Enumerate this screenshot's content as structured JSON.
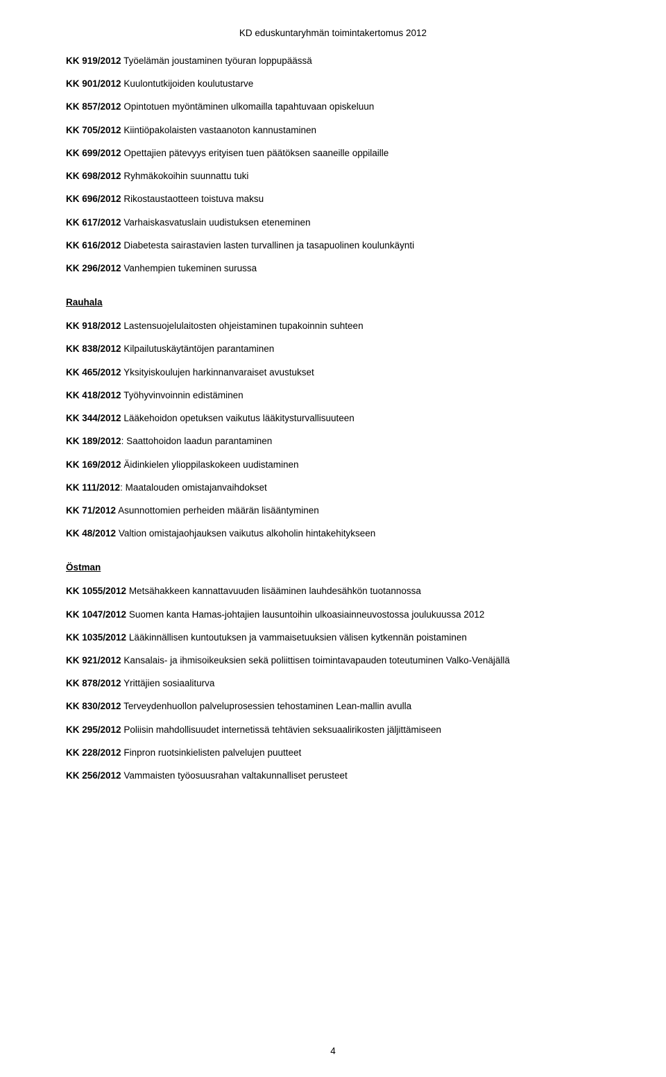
{
  "document": {
    "header": "KD eduskuntaryhmän toimintakertomus 2012",
    "page_number": "4",
    "text_color": "#000000",
    "background_color": "#ffffff",
    "body_fontsize": 13.5
  },
  "sections": [
    {
      "heading": null,
      "items": [
        {
          "code": "KK 919/2012",
          "colon": false,
          "title": "Työelämän joustaminen työuran loppupäässä"
        },
        {
          "code": "KK 901/2012",
          "colon": false,
          "title": "Kuulontutkijoiden koulutustarve"
        },
        {
          "code": "KK 857/2012",
          "colon": false,
          "title": "Opintotuen myöntäminen ulkomailla tapahtuvaan opiskeluun"
        },
        {
          "code": "KK 705/2012",
          "colon": false,
          "title": "Kiintiöpakolaisten vastaanoton kannustaminen"
        },
        {
          "code": "KK 699/2012",
          "colon": false,
          "title": "Opettajien pätevyys erityisen tuen päätöksen saaneille oppilaille"
        },
        {
          "code": "KK 698/2012",
          "colon": false,
          "title": "Ryhmäkokoihin suunnattu tuki"
        },
        {
          "code": "KK 696/2012",
          "colon": false,
          "title": "Rikostaustaotteen toistuva maksu"
        },
        {
          "code": "KK 617/2012",
          "colon": false,
          "title": "Varhaiskasvatuslain uudistuksen eteneminen"
        },
        {
          "code": "KK 616/2012",
          "colon": false,
          "title": "Diabetesta sairastavien lasten turvallinen ja tasapuolinen koulunkäynti"
        },
        {
          "code": "KK 296/2012",
          "colon": false,
          "title": "Vanhempien tukeminen surussa"
        }
      ]
    },
    {
      "heading": "Rauhala",
      "items": [
        {
          "code": "KK 918/2012",
          "colon": false,
          "title": "Lastensuojelulaitosten ohjeistaminen tupakoinnin suhteen"
        },
        {
          "code": "KK 838/2012",
          "colon": false,
          "title": "Kilpailutuskäytäntöjen parantaminen"
        },
        {
          "code": "KK 465/2012",
          "colon": false,
          "title": "Yksityiskoulujen harkinnanvaraiset avustukset"
        },
        {
          "code": "KK 418/2012",
          "colon": false,
          "title": "Työhyvinvoinnin edistäminen"
        },
        {
          "code": "KK 344/2012",
          "colon": false,
          "title": "Lääkehoidon opetuksen vaikutus lääkitysturvallisuuteen"
        },
        {
          "code": "KK 189/2012",
          "colon": true,
          "title": "Saattohoidon laadun parantaminen"
        },
        {
          "code": "KK 169/2012",
          "colon": false,
          "title": "Äidinkielen ylioppilaskokeen uudistaminen"
        },
        {
          "code": "KK 111/2012",
          "colon": true,
          "title": "Maatalouden omistajanvaihdokset"
        },
        {
          "code": "KK 71/2012",
          "colon": false,
          "title": "Asunnottomien perheiden määrän lisääntyminen"
        },
        {
          "code": "KK 48/2012",
          "colon": false,
          "title": "Valtion omistajaohjauksen vaikutus alkoholin hintakehitykseen"
        }
      ]
    },
    {
      "heading": "Östman",
      "items": [
        {
          "code": "KK 1055/2012",
          "colon": false,
          "title": "Metsähakkeen kannattavuuden lisääminen lauhdesähkön tuotannossa"
        },
        {
          "code": "KK 1047/2012",
          "colon": false,
          "title": "Suomen kanta Hamas-johtajien lausuntoihin ulkoasiainneuvostossa joulukuussa 2012"
        },
        {
          "code": "KK 1035/2012",
          "colon": false,
          "title": "Lääkinnällisen kuntoutuksen ja vammaisetuuksien välisen kytkennän poistaminen"
        },
        {
          "code": "KK 921/2012",
          "colon": false,
          "title": "Kansalais- ja ihmisoikeuksien sekä poliittisen toimintavapauden toteutuminen Valko-Venäjällä"
        },
        {
          "code": "KK 878/2012",
          "colon": false,
          "title": "Yrittäjien sosiaaliturva"
        },
        {
          "code": "KK 830/2012",
          "colon": false,
          "title": "Terveydenhuollon palveluprosessien tehostaminen Lean-mallin avulla"
        },
        {
          "code": "KK 295/2012",
          "colon": false,
          "title": "Poliisin mahdollisuudet internetissä tehtävien seksuaalirikosten jäljittämiseen"
        },
        {
          "code": "KK 228/2012",
          "colon": false,
          "title": "Finpron ruotsinkielisten palvelujen puutteet"
        },
        {
          "code": "KK 256/2012",
          "colon": false,
          "title": "Vammaisten työosuusrahan valtakunnalliset perusteet"
        }
      ]
    }
  ]
}
